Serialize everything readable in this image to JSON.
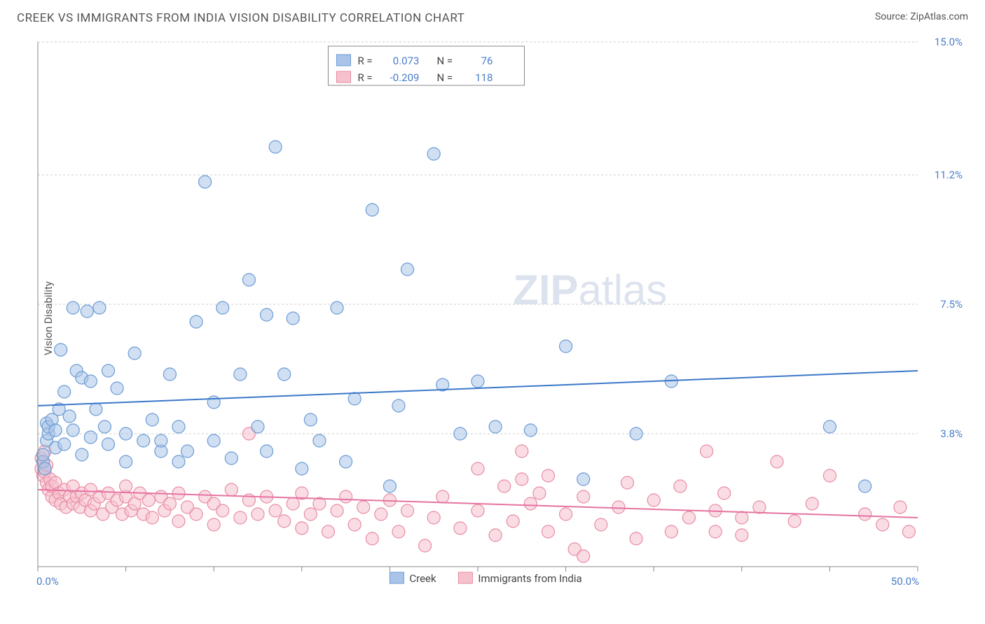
{
  "title": "CREEK VS IMMIGRANTS FROM INDIA VISION DISABILITY CORRELATION CHART",
  "source": "Source: ZipAtlas.com",
  "ylabel": "Vision Disability",
  "watermark": {
    "bold": "ZIP",
    "rest": "atlas"
  },
  "chart": {
    "type": "scatter",
    "xlim": [
      0,
      50
    ],
    "ylim": [
      0,
      15
    ],
    "x_ticks": [
      0,
      5,
      10,
      15,
      20,
      25,
      30,
      35,
      40,
      45,
      50
    ],
    "y_ticks": [
      3.8,
      7.5,
      11.2,
      15.0
    ],
    "y_tick_labels": [
      "3.8%",
      "7.5%",
      "11.2%",
      "15.0%"
    ],
    "x_end_labels": [
      "0.0%",
      "50.0%"
    ],
    "background_color": "#ffffff",
    "grid_color": "#cccccc",
    "axis_color": "#888888",
    "tick_label_color": "#4a7ec9",
    "marker_radius": 9,
    "marker_opacity": 0.55,
    "line_width": 2
  },
  "series": [
    {
      "name": "Creek",
      "fill": "#a9c4e8",
      "stroke": "#6b9bd6",
      "line_color": "#3b78c9",
      "R": "0.073",
      "N": "76",
      "trendline": {
        "y_at_x0": 4.6,
        "y_at_x50": 5.6
      },
      "points": [
        [
          0.3,
          3.0
        ],
        [
          0.3,
          3.2
        ],
        [
          0.4,
          2.8
        ],
        [
          0.5,
          3.6
        ],
        [
          0.5,
          4.1
        ],
        [
          0.6,
          3.8
        ],
        [
          0.6,
          4.0
        ],
        [
          0.8,
          4.2
        ],
        [
          1.0,
          3.9
        ],
        [
          1.0,
          3.4
        ],
        [
          1.2,
          4.5
        ],
        [
          1.3,
          6.2
        ],
        [
          1.5,
          3.5
        ],
        [
          1.5,
          5.0
        ],
        [
          1.8,
          4.3
        ],
        [
          2.0,
          3.9
        ],
        [
          2.0,
          7.4
        ],
        [
          2.2,
          5.6
        ],
        [
          2.5,
          3.2
        ],
        [
          2.5,
          5.4
        ],
        [
          2.8,
          7.3
        ],
        [
          3.0,
          3.7
        ],
        [
          3.0,
          5.3
        ],
        [
          3.3,
          4.5
        ],
        [
          3.5,
          7.4
        ],
        [
          3.8,
          4.0
        ],
        [
          4.0,
          3.5
        ],
        [
          4.0,
          5.6
        ],
        [
          4.5,
          5.1
        ],
        [
          5.0,
          3.0
        ],
        [
          5.0,
          3.8
        ],
        [
          5.5,
          6.1
        ],
        [
          6.0,
          3.6
        ],
        [
          6.5,
          4.2
        ],
        [
          7.0,
          3.3
        ],
        [
          7.0,
          3.6
        ],
        [
          7.5,
          5.5
        ],
        [
          8.0,
          3.0
        ],
        [
          8.0,
          4.0
        ],
        [
          8.5,
          3.3
        ],
        [
          9.0,
          7.0
        ],
        [
          9.5,
          11.0
        ],
        [
          10.0,
          3.6
        ],
        [
          10.0,
          4.7
        ],
        [
          10.5,
          7.4
        ],
        [
          11.0,
          3.1
        ],
        [
          11.5,
          5.5
        ],
        [
          12.0,
          8.2
        ],
        [
          12.5,
          4.0
        ],
        [
          13.0,
          3.3
        ],
        [
          13.0,
          7.2
        ],
        [
          13.5,
          12.0
        ],
        [
          14.0,
          5.5
        ],
        [
          14.5,
          7.1
        ],
        [
          15.0,
          2.8
        ],
        [
          15.5,
          4.2
        ],
        [
          16.0,
          3.6
        ],
        [
          17.0,
          7.4
        ],
        [
          17.5,
          3.0
        ],
        [
          18.0,
          4.8
        ],
        [
          19.0,
          10.2
        ],
        [
          20.0,
          2.3
        ],
        [
          20.5,
          4.6
        ],
        [
          21.0,
          8.5
        ],
        [
          22.5,
          11.8
        ],
        [
          23.0,
          5.2
        ],
        [
          24.0,
          3.8
        ],
        [
          25.0,
          5.3
        ],
        [
          26.0,
          4.0
        ],
        [
          28.0,
          3.9
        ],
        [
          30.0,
          6.3
        ],
        [
          31.0,
          2.5
        ],
        [
          34.0,
          3.8
        ],
        [
          36.0,
          5.3
        ],
        [
          45.0,
          4.0
        ],
        [
          47.0,
          2.3
        ]
      ]
    },
    {
      "name": "Immigrants from India",
      "fill": "#f5c1cd",
      "stroke": "#e88ba2",
      "line_color": "#e573a0",
      "R": "-0.209",
      "N": "118",
      "trendline": {
        "y_at_x0": 2.2,
        "y_at_x50": 1.4
      },
      "points": [
        [
          0.2,
          2.8
        ],
        [
          0.2,
          3.1
        ],
        [
          0.3,
          2.6
        ],
        [
          0.3,
          3.0
        ],
        [
          0.4,
          2.7
        ],
        [
          0.4,
          3.3
        ],
        [
          0.5,
          2.4
        ],
        [
          0.5,
          2.9
        ],
        [
          0.6,
          2.2
        ],
        [
          0.7,
          2.5
        ],
        [
          0.8,
          2.0
        ],
        [
          0.8,
          2.3
        ],
        [
          1.0,
          1.9
        ],
        [
          1.0,
          2.4
        ],
        [
          1.2,
          2.1
        ],
        [
          1.3,
          1.8
        ],
        [
          1.5,
          2.2
        ],
        [
          1.6,
          1.7
        ],
        [
          1.8,
          2.0
        ],
        [
          2.0,
          1.8
        ],
        [
          2.0,
          2.3
        ],
        [
          2.2,
          2.0
        ],
        [
          2.4,
          1.7
        ],
        [
          2.5,
          2.1
        ],
        [
          2.7,
          1.9
        ],
        [
          3.0,
          1.6
        ],
        [
          3.0,
          2.2
        ],
        [
          3.2,
          1.8
        ],
        [
          3.5,
          2.0
        ],
        [
          3.7,
          1.5
        ],
        [
          4.0,
          2.1
        ],
        [
          4.2,
          1.7
        ],
        [
          4.5,
          1.9
        ],
        [
          4.8,
          1.5
        ],
        [
          5.0,
          2.0
        ],
        [
          5.0,
          2.3
        ],
        [
          5.3,
          1.6
        ],
        [
          5.5,
          1.8
        ],
        [
          5.8,
          2.1
        ],
        [
          6.0,
          1.5
        ],
        [
          6.3,
          1.9
        ],
        [
          6.5,
          1.4
        ],
        [
          7.0,
          2.0
        ],
        [
          7.2,
          1.6
        ],
        [
          7.5,
          1.8
        ],
        [
          8.0,
          1.3
        ],
        [
          8.0,
          2.1
        ],
        [
          8.5,
          1.7
        ],
        [
          9.0,
          1.5
        ],
        [
          9.5,
          2.0
        ],
        [
          10.0,
          1.2
        ],
        [
          10.0,
          1.8
        ],
        [
          10.5,
          1.6
        ],
        [
          11.0,
          2.2
        ],
        [
          11.5,
          1.4
        ],
        [
          12.0,
          1.9
        ],
        [
          12.0,
          3.8
        ],
        [
          12.5,
          1.5
        ],
        [
          13.0,
          2.0
        ],
        [
          13.5,
          1.6
        ],
        [
          14.0,
          1.3
        ],
        [
          14.5,
          1.8
        ],
        [
          15.0,
          1.1
        ],
        [
          15.0,
          2.1
        ],
        [
          15.5,
          1.5
        ],
        [
          16.0,
          1.8
        ],
        [
          16.5,
          1.0
        ],
        [
          17.0,
          1.6
        ],
        [
          17.5,
          2.0
        ],
        [
          18.0,
          1.2
        ],
        [
          18.5,
          1.7
        ],
        [
          19.0,
          0.8
        ],
        [
          19.5,
          1.5
        ],
        [
          20.0,
          1.9
        ],
        [
          20.5,
          1.0
        ],
        [
          21.0,
          1.6
        ],
        [
          22.0,
          0.6
        ],
        [
          22.5,
          1.4
        ],
        [
          23.0,
          2.0
        ],
        [
          24.0,
          1.1
        ],
        [
          25.0,
          1.6
        ],
        [
          25.0,
          2.8
        ],
        [
          26.0,
          0.9
        ],
        [
          26.5,
          2.3
        ],
        [
          27.0,
          1.3
        ],
        [
          27.5,
          2.5
        ],
        [
          27.5,
          3.3
        ],
        [
          28.0,
          1.8
        ],
        [
          28.5,
          2.1
        ],
        [
          29.0,
          1.0
        ],
        [
          29.0,
          2.6
        ],
        [
          30.0,
          1.5
        ],
        [
          30.5,
          0.5
        ],
        [
          31.0,
          0.3
        ],
        [
          31.0,
          2.0
        ],
        [
          32.0,
          1.2
        ],
        [
          33.0,
          1.7
        ],
        [
          33.5,
          2.4
        ],
        [
          34.0,
          0.8
        ],
        [
          35.0,
          1.9
        ],
        [
          36.0,
          1.0
        ],
        [
          36.5,
          2.3
        ],
        [
          37.0,
          1.4
        ],
        [
          38.0,
          3.3
        ],
        [
          38.5,
          1.0
        ],
        [
          38.5,
          1.6
        ],
        [
          39.0,
          2.1
        ],
        [
          40.0,
          0.9
        ],
        [
          40.0,
          1.4
        ],
        [
          41.0,
          1.7
        ],
        [
          42.0,
          3.0
        ],
        [
          43.0,
          1.3
        ],
        [
          44.0,
          1.8
        ],
        [
          45.0,
          2.6
        ],
        [
          47.0,
          1.5
        ],
        [
          48.0,
          1.2
        ],
        [
          49.0,
          1.7
        ],
        [
          49.5,
          1.0
        ]
      ]
    }
  ],
  "legend_bottom": [
    {
      "swatch_fill": "#a9c4e8",
      "swatch_stroke": "#6b9bd6",
      "label": "Creek"
    },
    {
      "swatch_fill": "#f5c1cd",
      "swatch_stroke": "#e88ba2",
      "label": "Immigrants from India"
    }
  ]
}
